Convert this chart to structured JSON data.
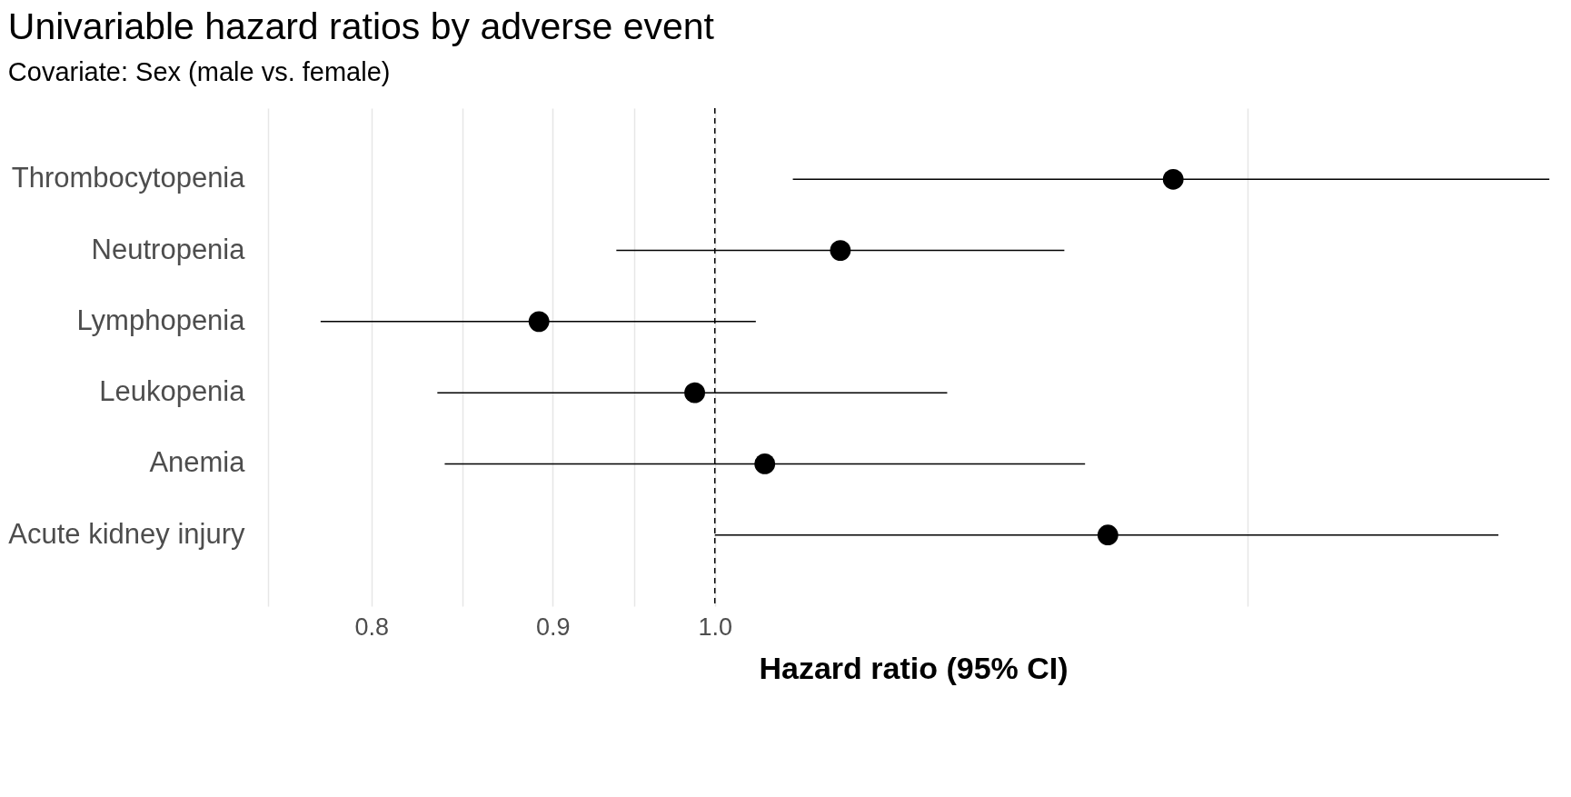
{
  "chart_data": {
    "type": "scatter",
    "title": "Univariable hazard ratios by adverse event",
    "subtitle": "Covariate: Sex (male vs. female)",
    "xlabel": "Hazard ratio (95% CI)",
    "categories": [
      "Thrombocytopenia",
      "Neutropenia",
      "Lymphopenia",
      "Leukopenia",
      "Anemia",
      "Acute kidney injury"
    ],
    "values": [
      1.347,
      1.085,
      0.892,
      0.987,
      1.033,
      1.291
    ],
    "errors": [
      [
        1.052,
        1.72
      ],
      [
        0.938,
        1.255
      ],
      [
        0.774,
        1.027
      ],
      [
        0.835,
        1.163
      ],
      [
        0.839,
        1.272
      ],
      [
        1.0,
        1.664
      ]
    ],
    "orientation": "horizontal",
    "log": "x",
    "xlim": [
      0.748,
      1.73
    ],
    "xticks": [
      {
        "value": 0.748,
        "label": null
      },
      0.8,
      {
        "value": 0.849,
        "label": null
      },
      0.9,
      {
        "value": 0.949,
        "label": null
      },
      {
        "value": 1,
        "label": "1.0"
      },
      {
        "value": 1.414,
        "label": null
      }
    ],
    "grid": "x",
    "marker": "circle",
    "color": "#000000",
    "ref_lines": [
      {
        "axis": "x",
        "value": 1,
        "line_style": "dashed",
        "color": "#000000"
      }
    ]
  }
}
